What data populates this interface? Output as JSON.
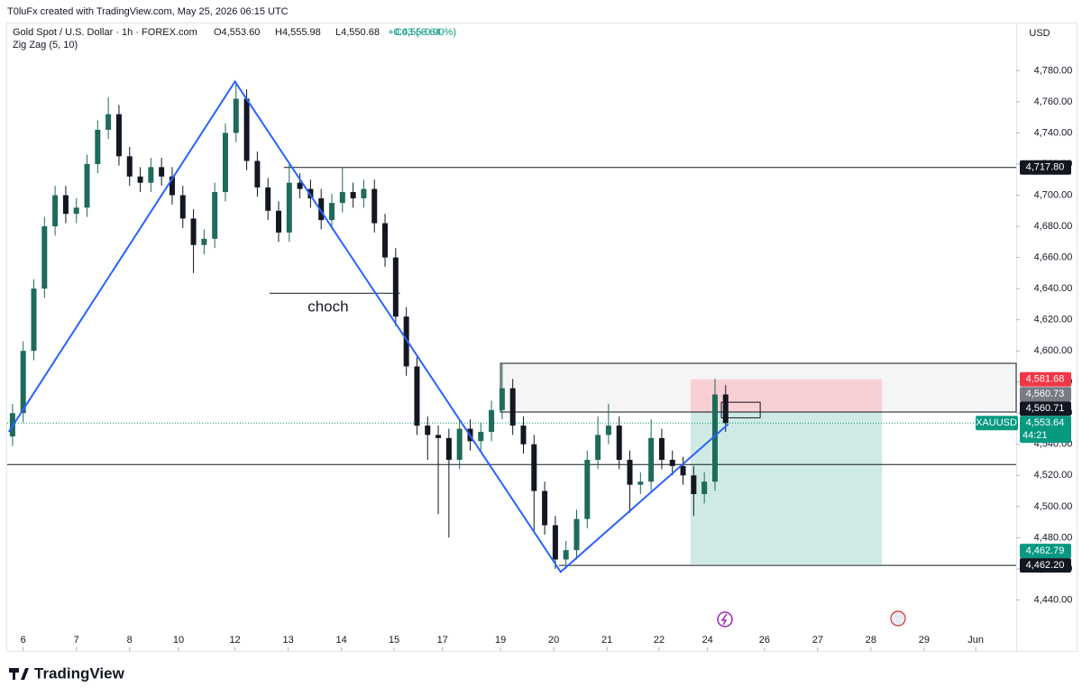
{
  "header": {
    "credit": "T0luFx created with TradingView.com, May 25, 2026 06:15 UTC",
    "symbol": "Gold Spot / U.S. Dollar · 1h · FOREX.com",
    "open": "O4,553.60",
    "high": "H4,555.98",
    "low": "L4,550.68",
    "close": "C4,553.64",
    "change": "+0.03 (+0.00%)",
    "indicator": "Zig Zag (5, 10)",
    "currency": "USD"
  },
  "footer": {
    "brand": "TradingView"
  },
  "chart_data": {
    "type": "candlestick",
    "up_color": "#1e6b5b",
    "down_color": "#131722",
    "xlim": [
      -0.3,
      18.66
    ],
    "xticks": [
      {
        "value": 0,
        "label": "6"
      },
      {
        "value": 1,
        "label": "7"
      },
      {
        "value": 2,
        "label": "8"
      },
      {
        "value": 2.92,
        "label": "10"
      },
      {
        "value": 3.98,
        "label": "12"
      },
      {
        "value": 4.98,
        "label": "13"
      },
      {
        "value": 5.98,
        "label": "14"
      },
      {
        "value": 6.97,
        "label": "15"
      },
      {
        "value": 7.88,
        "label": "17"
      },
      {
        "value": 8.97,
        "label": "19"
      },
      {
        "value": 9.97,
        "label": "20"
      },
      {
        "value": 10.97,
        "label": "21"
      },
      {
        "value": 11.95,
        "label": "22"
      },
      {
        "value": 12.86,
        "label": "24"
      },
      {
        "value": 13.93,
        "label": "26"
      },
      {
        "value": 14.93,
        "label": "27"
      },
      {
        "value": 15.93,
        "label": "28"
      },
      {
        "value": 16.93,
        "label": "29"
      },
      {
        "value": 17.9,
        "label": "Jun"
      }
    ],
    "ylim": [
      4420,
      4808
    ],
    "yticks": [
      {
        "value": 4440,
        "label": "4,440.00"
      },
      {
        "value": 4460,
        "label": "4,460.00"
      },
      {
        "value": 4480,
        "label": "4,480.00"
      },
      {
        "value": 4500,
        "label": "4,500.00"
      },
      {
        "value": 4520,
        "label": "4,520.00"
      },
      {
        "value": 4540,
        "label": "4,540.00"
      },
      {
        "value": 4560,
        "label": "4,560.00"
      },
      {
        "value": 4580,
        "label": "4,580.00"
      },
      {
        "value": 4600,
        "label": "4,600.00"
      },
      {
        "value": 4620,
        "label": "4,620.00"
      },
      {
        "value": 4640,
        "label": "4,640.00"
      },
      {
        "value": 4660,
        "label": "4,660.00"
      },
      {
        "value": 4680,
        "label": "4,680.00"
      },
      {
        "value": 4700,
        "label": "4,700.00"
      },
      {
        "value": 4720,
        "label": "4,720.00"
      },
      {
        "value": 4740,
        "label": "4,740.00"
      },
      {
        "value": 4760,
        "label": "4,760.00"
      },
      {
        "value": 4780,
        "label": "4,780.00"
      }
    ],
    "candles": [
      [
        -0.2,
        4545,
        4566,
        4539,
        4560
      ],
      [
        0,
        4560,
        4606,
        4554,
        4600
      ],
      [
        0.2,
        4600,
        4646,
        4594,
        4640
      ],
      [
        0.4,
        4640,
        4686,
        4634,
        4680
      ],
      [
        0.6,
        4680,
        4706,
        4674,
        4700
      ],
      [
        0.8,
        4700,
        4706,
        4682,
        4688
      ],
      [
        1,
        4688,
        4698,
        4682,
        4692
      ],
      [
        1.2,
        4692,
        4726,
        4686,
        4720
      ],
      [
        1.4,
        4720,
        4748,
        4714,
        4742
      ],
      [
        1.6,
        4742,
        4763,
        4736,
        4752
      ],
      [
        1.8,
        4752,
        4758,
        4719,
        4725
      ],
      [
        2,
        4725,
        4731,
        4706,
        4712
      ],
      [
        2.2,
        4712,
        4718,
        4702,
        4708
      ],
      [
        2.4,
        4708,
        4724,
        4702,
        4718
      ],
      [
        2.6,
        4718,
        4724,
        4706,
        4712
      ],
      [
        2.8,
        4712,
        4718,
        4694,
        4700
      ],
      [
        3,
        4700,
        4706,
        4679,
        4685
      ],
      [
        3.2,
        4685,
        4691,
        4650,
        4668
      ],
      [
        3.4,
        4668,
        4678,
        4662,
        4672
      ],
      [
        3.6,
        4672,
        4708,
        4666,
        4702
      ],
      [
        3.8,
        4702,
        4746,
        4696,
        4740
      ],
      [
        4,
        4740,
        4773,
        4734,
        4762
      ],
      [
        4.2,
        4762,
        4768,
        4716,
        4722
      ],
      [
        4.4,
        4722,
        4728,
        4699,
        4705
      ],
      [
        4.6,
        4705,
        4711,
        4684,
        4690
      ],
      [
        4.8,
        4690,
        4696,
        4670,
        4676
      ],
      [
        5,
        4676,
        4720,
        4670,
        4708
      ],
      [
        5.2,
        4708,
        4714,
        4698,
        4704
      ],
      [
        5.4,
        4704,
        4710,
        4692,
        4698
      ],
      [
        5.6,
        4698,
        4704,
        4678,
        4684
      ],
      [
        5.8,
        4684,
        4701,
        4678,
        4695
      ],
      [
        6,
        4695,
        4718,
        4689,
        4702
      ],
      [
        6.2,
        4702,
        4708,
        4692,
        4698
      ],
      [
        6.4,
        4698,
        4710,
        4692,
        4704
      ],
      [
        6.6,
        4704,
        4710,
        4676,
        4682
      ],
      [
        6.8,
        4682,
        4688,
        4654,
        4660
      ],
      [
        7,
        4660,
        4666,
        4616,
        4622
      ],
      [
        7.2,
        4622,
        4628,
        4584,
        4590
      ],
      [
        7.4,
        4590,
        4596,
        4546,
        4552
      ],
      [
        7.6,
        4552,
        4558,
        4530,
        4546
      ],
      [
        7.8,
        4546,
        4552,
        4495,
        4544
      ],
      [
        8,
        4544,
        4550,
        4480,
        4530
      ],
      [
        8.2,
        4530,
        4556,
        4524,
        4550
      ],
      [
        8.4,
        4550,
        4556,
        4536,
        4542
      ],
      [
        8.6,
        4542,
        4554,
        4536,
        4548
      ],
      [
        8.8,
        4548,
        4568,
        4542,
        4562
      ],
      [
        9,
        4562,
        4592,
        4556,
        4576
      ],
      [
        9.2,
        4576,
        4582,
        4546,
        4552
      ],
      [
        9.4,
        4552,
        4558,
        4534,
        4540
      ],
      [
        9.6,
        4540,
        4546,
        4484,
        4510
      ],
      [
        9.8,
        4510,
        4516,
        4482,
        4488
      ],
      [
        10,
        4488,
        4494,
        4460,
        4466
      ],
      [
        10.2,
        4466,
        4478,
        4460,
        4472
      ],
      [
        10.4,
        4472,
        4498,
        4466,
        4492
      ],
      [
        10.6,
        4492,
        4536,
        4486,
        4530
      ],
      [
        10.8,
        4530,
        4558,
        4524,
        4546
      ],
      [
        11,
        4546,
        4566,
        4540,
        4552
      ],
      [
        11.2,
        4552,
        4558,
        4524,
        4530
      ],
      [
        11.4,
        4530,
        4536,
        4496,
        4514
      ],
      [
        11.6,
        4514,
        4522,
        4508,
        4516
      ],
      [
        11.8,
        4516,
        4556,
        4510,
        4544
      ],
      [
        12,
        4544,
        4550,
        4524,
        4530
      ],
      [
        12.2,
        4530,
        4536,
        4520,
        4526
      ],
      [
        12.4,
        4526,
        4532,
        4514,
        4520
      ],
      [
        12.6,
        4520,
        4526,
        4494,
        4508
      ],
      [
        12.8,
        4508,
        4522,
        4502,
        4516
      ],
      [
        13,
        4516,
        4582,
        4510,
        4572
      ],
      [
        13.2,
        4572,
        4578,
        4548,
        4553.64
      ]
    ],
    "zigzag": {
      "color": "#2962ff",
      "x": [
        -0.27,
        3.98,
        10.1,
        13.25
      ],
      "y": [
        4548,
        4773,
        4458,
        4553
      ]
    },
    "zones": [
      {
        "top": 4592,
        "bottom": 4560.71,
        "from": 8.97,
        "to": 18.66,
        "color": "#f5f5f5"
      },
      {
        "top": 4581.68,
        "bottom": 4560.71,
        "from": 12.54,
        "to": 16.14,
        "color": "#f8d0d3"
      },
      {
        "top": 4560.71,
        "bottom": 4462.79,
        "from": 12.54,
        "to": 16.14,
        "color": "#cfeae4"
      },
      {
        "top": 4567,
        "bottom": 4557,
        "from": 13.12,
        "to": 13.85
      }
    ],
    "levels": [
      {
        "value": 4717.8,
        "from": 4.9,
        "to": 18.66
      },
      {
        "value": 4637,
        "from": 4.63,
        "to": 7.08
      },
      {
        "value": 4527,
        "from": -0.3,
        "to": 18.66
      },
      {
        "value": 4462.2,
        "from": 10.07,
        "to": 18.66
      },
      {
        "value": 4560.71,
        "from": 8.97,
        "to": 18.66
      }
    ],
    "last_price": 4553.64,
    "annotations": [
      {
        "text": "choch",
        "x": 5.73,
        "y": 4628
      }
    ],
    "badges": [
      {
        "value": 4717.8,
        "label": "4,717.80",
        "color": "#131722"
      },
      {
        "value": 4581.68,
        "label": "4,581.68",
        "color": "#f23645"
      },
      {
        "value": 4560.73,
        "label": "4,560.73",
        "color": "#787b86"
      },
      {
        "value": 4560.71,
        "label": "4,560.71",
        "color": "#131722"
      },
      {
        "value": 4553.64,
        "label": "4,553.64",
        "color": "#089981",
        "symbol": "XAUUSD",
        "countdown": "44:21"
      },
      {
        "value": 4462.79,
        "label": "4,462.79",
        "color": "#089981"
      },
      {
        "value": 4462.2,
        "label": "4,462.20",
        "color": "#131722"
      }
    ]
  }
}
